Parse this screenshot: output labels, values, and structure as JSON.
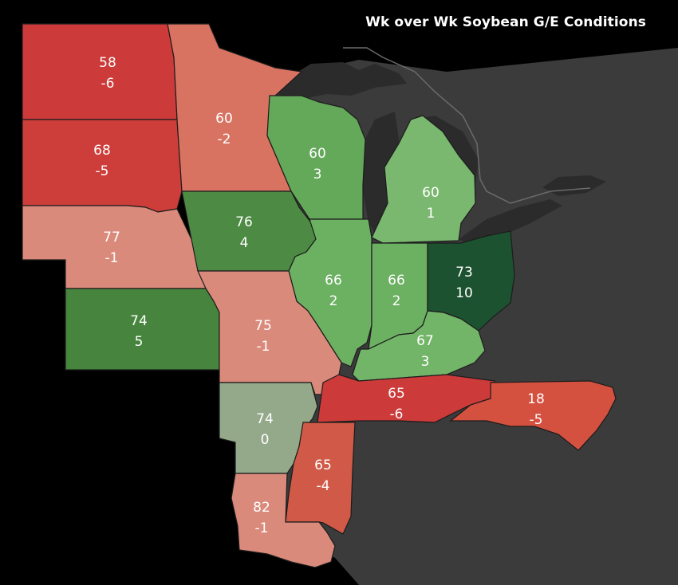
{
  "title": "Wk over Wk Soybean G/E Conditions",
  "colors": {
    "background": "#000000",
    "land": "#3b3b3b",
    "water": "#2b2b2b",
    "border": "#1c1c1c"
  },
  "states": [
    {
      "id": "nd",
      "value": "58",
      "change": "-6",
      "fill": "#cc3a3a"
    },
    {
      "id": "sd",
      "value": "68",
      "change": "-5",
      "fill": "#cd3e3b"
    },
    {
      "id": "ne",
      "value": "77",
      "change": "-1",
      "fill": "#da8a7b"
    },
    {
      "id": "ks",
      "value": "74",
      "change": "5",
      "fill": "#47853e"
    },
    {
      "id": "mn",
      "value": "60",
      "change": "-2",
      "fill": "#d87362"
    },
    {
      "id": "ia",
      "value": "76",
      "change": "4",
      "fill": "#4d8b44"
    },
    {
      "id": "mo",
      "value": "75",
      "change": "-1",
      "fill": "#da8a7b"
    },
    {
      "id": "ar",
      "value": "74",
      "change": "0",
      "fill": "#94a98a"
    },
    {
      "id": "la",
      "value": "82",
      "change": "-1",
      "fill": "#da8a7b"
    },
    {
      "id": "wi",
      "value": "60",
      "change": "3",
      "fill": "#64a85a"
    },
    {
      "id": "il",
      "value": "66",
      "change": "2",
      "fill": "#6cb062"
    },
    {
      "id": "mi",
      "value": "60",
      "change": "1",
      "fill": "#79b86e"
    },
    {
      "id": "in",
      "value": "66",
      "change": "2",
      "fill": "#6cb062"
    },
    {
      "id": "oh",
      "value": "73",
      "change": "10",
      "fill": "#1d5230"
    },
    {
      "id": "ky",
      "value": "67",
      "change": "3",
      "fill": "#73b568"
    },
    {
      "id": "tn",
      "value": "65",
      "change": "-6",
      "fill": "#cc3a3a"
    },
    {
      "id": "nc",
      "value": "18",
      "change": "-5",
      "fill": "#d4503f"
    },
    {
      "id": "ms",
      "value": "65",
      "change": "-4",
      "fill": "#d05a47"
    }
  ]
}
